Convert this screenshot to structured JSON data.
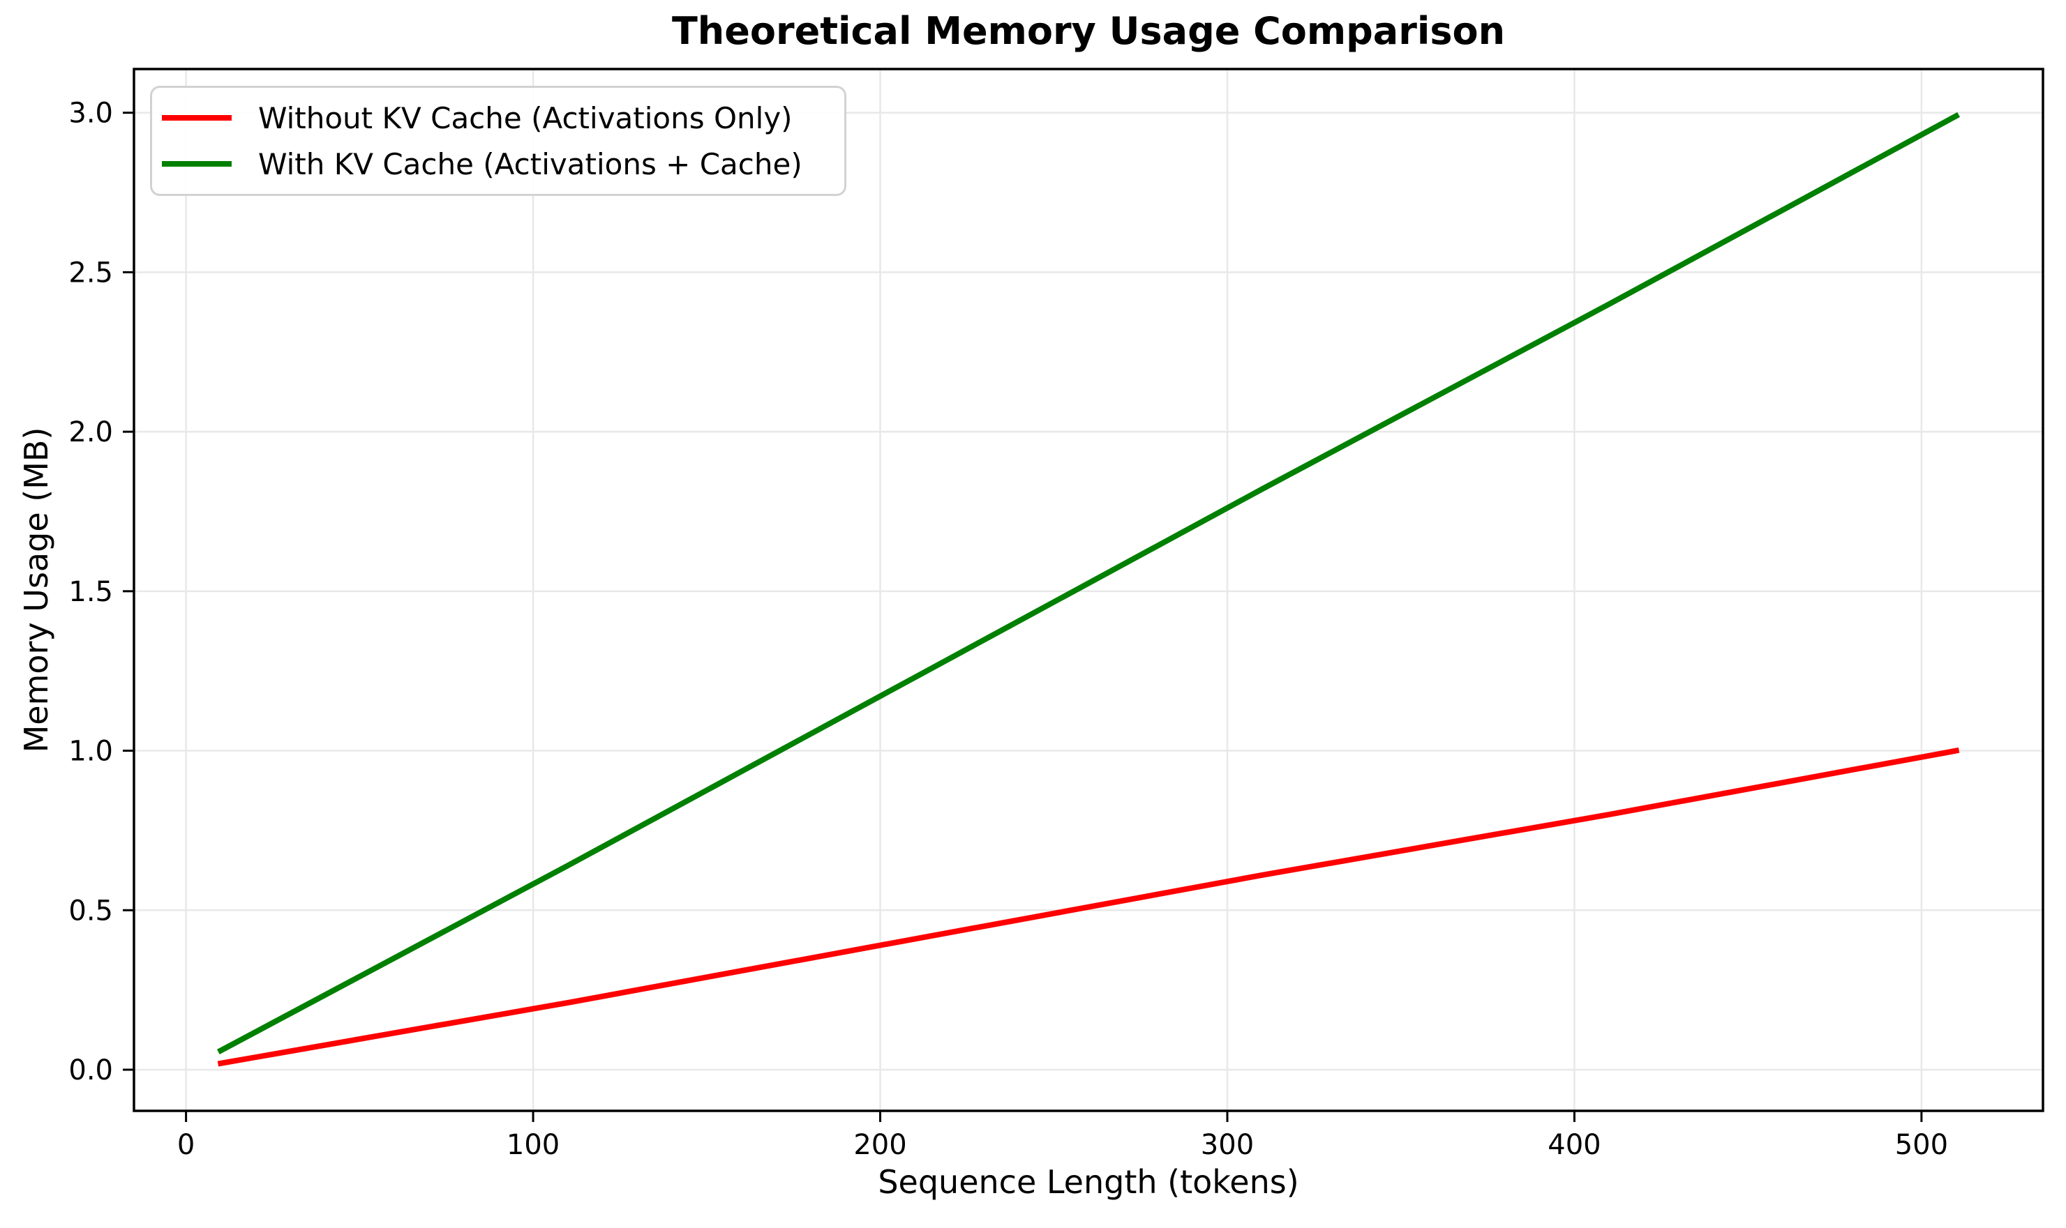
{
  "chart_data": {
    "type": "line",
    "title": "Theoretical Memory Usage Comparison",
    "xlabel": "Sequence Length (tokens)",
    "ylabel": "Memory Usage (MB)",
    "xlim": [
      -15,
      535
    ],
    "ylim": [
      -0.129,
      3.137
    ],
    "x_ticks": [
      "0",
      "100",
      "200",
      "300",
      "400",
      "500"
    ],
    "y_ticks": [
      "0.0",
      "0.5",
      "1.0",
      "1.5",
      "2.0",
      "2.5",
      "3.0"
    ],
    "grid": true,
    "grid_color": "#e8e8e8",
    "legend_position": "upper-left",
    "x": [
      10,
      110,
      210,
      310,
      410,
      510
    ],
    "series": [
      {
        "name": "Without KV Cache (Activations Only)",
        "color": "#ff0000",
        "values": [
          0.02,
          0.21,
          0.41,
          0.61,
          0.8,
          1.0
        ]
      },
      {
        "name": "With KV Cache (Activations + Cache)",
        "color": "#008000",
        "values": [
          0.06,
          0.64,
          1.23,
          1.82,
          2.4,
          2.99
        ]
      }
    ]
  }
}
